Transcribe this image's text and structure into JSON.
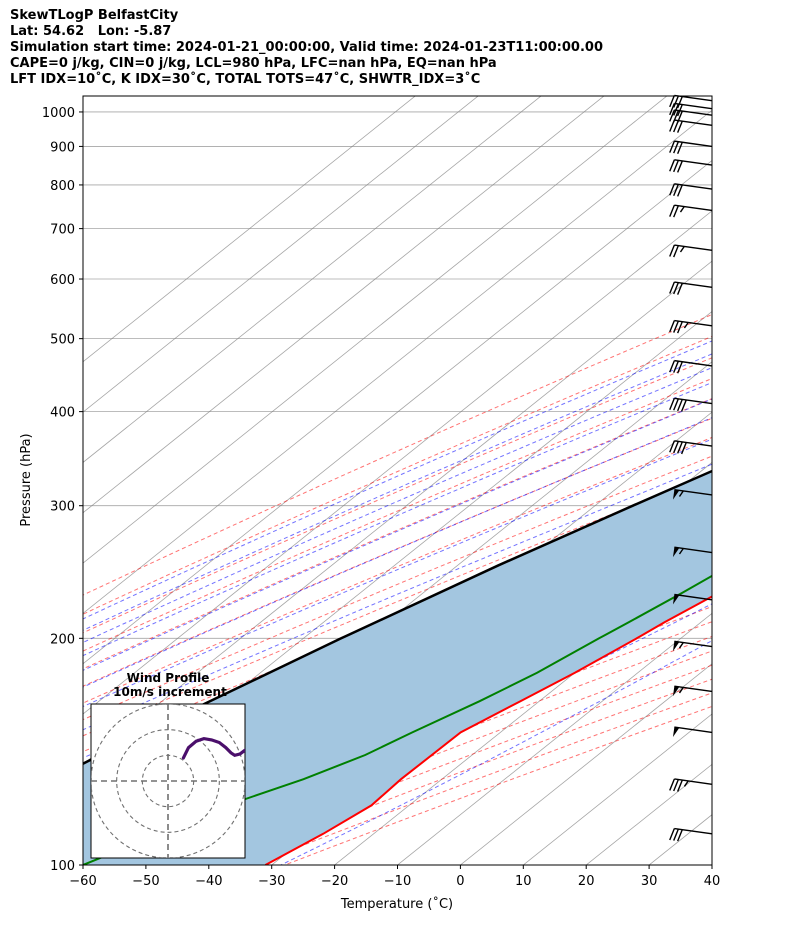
{
  "header": {
    "lines": [
      "SkewTLogP BelfastCity",
      "Lat: 54.62   Lon: -5.87",
      "Simulation start time: 2024-01-21_00:00:00, Valid time: 2024-01-23T11:00:00.00",
      "CAPE=0 j/kg, CIN=0 j/kg, LCL=980 hPa, LFC=nan hPa, EQ=nan hPa",
      "LFT IDX=10˚C, K IDX=30˚C, TOTAL TOTS=47˚C, SHWTR_IDX=3˚C"
    ]
  },
  "chart_data": {
    "type": "skewt",
    "xlabel": "Temperature (˚C)",
    "ylabel": "Pressure (hPa)",
    "xlim": [
      -60,
      40
    ],
    "ylim": [
      1050,
      100
    ],
    "x_ticks": [
      -60,
      -50,
      -40,
      -30,
      -20,
      -10,
      0,
      10,
      20,
      30,
      40
    ],
    "p_ticks": [
      1000,
      900,
      800,
      700,
      600,
      500,
      400,
      300,
      200,
      100
    ],
    "grid": true,
    "colors": {
      "temperature": "#ff0000",
      "dewpoint": "#008000",
      "parcel": "#000000",
      "shade": "#a3c6e0",
      "dry_adiabat": "#ff0000",
      "moist_adiabat": "#0000ff",
      "mixing_ratio": "#8000a0",
      "isotherm": "#808080",
      "hodograph": "#4b0f6b"
    },
    "series": [
      {
        "kind": "temperature",
        "points": [
          [
            1000,
            11.5
          ],
          [
            975,
            12.5
          ],
          [
            950,
            13.4
          ],
          [
            900,
            14.0
          ],
          [
            850,
            13.8
          ],
          [
            800,
            13.0
          ],
          [
            750,
            11.6
          ],
          [
            700,
            10.0
          ],
          [
            650,
            8.6
          ],
          [
            600,
            7.0
          ],
          [
            550,
            5.2
          ],
          [
            500,
            3.4
          ],
          [
            450,
            0.7
          ],
          [
            400,
            -1.0
          ],
          [
            350,
            -3.0
          ],
          [
            320,
            -4.0
          ],
          [
            300,
            -5.0
          ],
          [
            270,
            -8.0
          ],
          [
            250,
            -10.2
          ],
          [
            230,
            -13.0
          ],
          [
            210,
            -15.8
          ],
          [
            200,
            -17.0
          ],
          [
            180,
            -20.0
          ],
          [
            165,
            -23.0
          ],
          [
            150,
            -26.3
          ],
          [
            130,
            -26.5
          ],
          [
            120,
            -26.0
          ],
          [
            110,
            -28.0
          ],
          [
            100,
            -31.0
          ]
        ]
      },
      {
        "kind": "dewpoint",
        "points": [
          [
            1000,
            11.3
          ],
          [
            975,
            12.3
          ],
          [
            950,
            13.0
          ],
          [
            900,
            13.4
          ],
          [
            850,
            12.8
          ],
          [
            800,
            11.5
          ],
          [
            750,
            9.5
          ],
          [
            700,
            7.6
          ],
          [
            650,
            5.5
          ],
          [
            600,
            3.6
          ],
          [
            550,
            1.5
          ],
          [
            500,
            -0.5
          ],
          [
            450,
            -3.0
          ],
          [
            400,
            -5.0
          ],
          [
            350,
            -7.0
          ],
          [
            320,
            -9.0
          ],
          [
            300,
            -12.0
          ],
          [
            270,
            -14.5
          ],
          [
            250,
            -16.6
          ],
          [
            230,
            -18.8
          ],
          [
            210,
            -21.5
          ],
          [
            200,
            -23.0
          ],
          [
            180,
            -26.0
          ],
          [
            165,
            -29.5
          ],
          [
            150,
            -34.0
          ],
          [
            140,
            -37.0
          ],
          [
            130,
            -42.0
          ],
          [
            120,
            -49.0
          ],
          [
            110,
            -54.0
          ],
          [
            100,
            -60.0
          ]
        ]
      },
      {
        "kind": "parcel",
        "points": [
          [
            990,
            11.6
          ],
          [
            980,
            11.0
          ],
          [
            900,
            8.2
          ],
          [
            800,
            3.9
          ],
          [
            700,
            -1.5
          ],
          [
            600,
            -8.3
          ],
          [
            500,
            -17.0
          ],
          [
            400,
            -28.5
          ],
          [
            300,
            -44.0
          ],
          [
            250,
            -53.5
          ],
          [
            200,
            -64.0
          ],
          [
            150,
            -76.5
          ],
          [
            120,
            -85.0
          ],
          [
            100,
            -92.5
          ]
        ]
      }
    ],
    "wind_barbs": {
      "x_position": "right edge",
      "barbs": [
        {
          "p": 1035,
          "flags": 0,
          "full": 3,
          "half": 0
        },
        {
          "p": 1010,
          "flags": 0,
          "full": 3,
          "half": 0
        },
        {
          "p": 990,
          "flags": 0,
          "full": 3,
          "half": 0
        },
        {
          "p": 960,
          "flags": 0,
          "full": 3,
          "half": 0
        },
        {
          "p": 900,
          "flags": 0,
          "full": 3,
          "half": 0
        },
        {
          "p": 850,
          "flags": 0,
          "full": 3,
          "half": 0
        },
        {
          "p": 790,
          "flags": 0,
          "full": 3,
          "half": 0
        },
        {
          "p": 740,
          "flags": 0,
          "full": 2,
          "half": 1
        },
        {
          "p": 655,
          "flags": 0,
          "full": 2,
          "half": 1
        },
        {
          "p": 585,
          "flags": 0,
          "full": 3,
          "half": 0
        },
        {
          "p": 520,
          "flags": 0,
          "full": 3,
          "half": 1
        },
        {
          "p": 460,
          "flags": 0,
          "full": 3,
          "half": 0
        },
        {
          "p": 410,
          "flags": 0,
          "full": 4,
          "half": 0
        },
        {
          "p": 360,
          "flags": 0,
          "full": 4,
          "half": 0
        },
        {
          "p": 310,
          "flags": 1,
          "full": 0,
          "half": 1
        },
        {
          "p": 260,
          "flags": 1,
          "full": 0,
          "half": 1
        },
        {
          "p": 225,
          "flags": 1,
          "full": 0,
          "half": 0
        },
        {
          "p": 195,
          "flags": 1,
          "full": 0,
          "half": 1
        },
        {
          "p": 170,
          "flags": 1,
          "full": 0,
          "half": 1
        },
        {
          "p": 150,
          "flags": 1,
          "full": 0,
          "half": 0
        },
        {
          "p": 128,
          "flags": 0,
          "full": 3,
          "half": 1
        },
        {
          "p": 110,
          "flags": 0,
          "full": 3,
          "half": 0
        }
      ]
    },
    "hodograph": {
      "title": "Wind Profile",
      "subtitle": "10m/s increment",
      "rings_ms": [
        10,
        20,
        30
      ],
      "range_ms": 30,
      "trace_uv": [
        [
          6,
          9
        ],
        [
          8,
          13
        ],
        [
          11,
          15.5
        ],
        [
          14,
          16.5
        ],
        [
          17,
          16
        ],
        [
          20,
          15
        ],
        [
          22.5,
          13
        ],
        [
          24.5,
          11
        ],
        [
          26,
          10
        ],
        [
          28,
          10.5
        ],
        [
          30,
          12
        ]
      ]
    }
  }
}
